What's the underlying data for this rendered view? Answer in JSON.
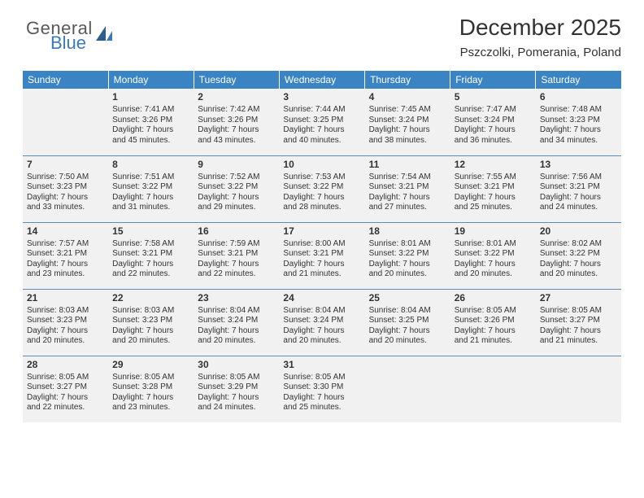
{
  "logo": {
    "word1": "General",
    "word2": "Blue"
  },
  "title": "December 2025",
  "subtitle": "Pszczolki, Pomerania, Poland",
  "colors": {
    "header_bg": "#3a84c4",
    "header_text": "#ffffff",
    "cell_bg": "#f1f1f1",
    "divider": "#5b8fb8",
    "text": "#333333",
    "logo_gray": "#595959",
    "logo_blue": "#3a7ab8"
  },
  "day_headers": [
    "Sunday",
    "Monday",
    "Tuesday",
    "Wednesday",
    "Thursday",
    "Friday",
    "Saturday"
  ],
  "weeks": [
    [
      null,
      {
        "n": "1",
        "sr": "Sunrise: 7:41 AM",
        "ss": "Sunset: 3:26 PM",
        "d1": "Daylight: 7 hours",
        "d2": "and 45 minutes."
      },
      {
        "n": "2",
        "sr": "Sunrise: 7:42 AM",
        "ss": "Sunset: 3:26 PM",
        "d1": "Daylight: 7 hours",
        "d2": "and 43 minutes."
      },
      {
        "n": "3",
        "sr": "Sunrise: 7:44 AM",
        "ss": "Sunset: 3:25 PM",
        "d1": "Daylight: 7 hours",
        "d2": "and 40 minutes."
      },
      {
        "n": "4",
        "sr": "Sunrise: 7:45 AM",
        "ss": "Sunset: 3:24 PM",
        "d1": "Daylight: 7 hours",
        "d2": "and 38 minutes."
      },
      {
        "n": "5",
        "sr": "Sunrise: 7:47 AM",
        "ss": "Sunset: 3:24 PM",
        "d1": "Daylight: 7 hours",
        "d2": "and 36 minutes."
      },
      {
        "n": "6",
        "sr": "Sunrise: 7:48 AM",
        "ss": "Sunset: 3:23 PM",
        "d1": "Daylight: 7 hours",
        "d2": "and 34 minutes."
      }
    ],
    [
      {
        "n": "7",
        "sr": "Sunrise: 7:50 AM",
        "ss": "Sunset: 3:23 PM",
        "d1": "Daylight: 7 hours",
        "d2": "and 33 minutes."
      },
      {
        "n": "8",
        "sr": "Sunrise: 7:51 AM",
        "ss": "Sunset: 3:22 PM",
        "d1": "Daylight: 7 hours",
        "d2": "and 31 minutes."
      },
      {
        "n": "9",
        "sr": "Sunrise: 7:52 AM",
        "ss": "Sunset: 3:22 PM",
        "d1": "Daylight: 7 hours",
        "d2": "and 29 minutes."
      },
      {
        "n": "10",
        "sr": "Sunrise: 7:53 AM",
        "ss": "Sunset: 3:22 PM",
        "d1": "Daylight: 7 hours",
        "d2": "and 28 minutes."
      },
      {
        "n": "11",
        "sr": "Sunrise: 7:54 AM",
        "ss": "Sunset: 3:21 PM",
        "d1": "Daylight: 7 hours",
        "d2": "and 27 minutes."
      },
      {
        "n": "12",
        "sr": "Sunrise: 7:55 AM",
        "ss": "Sunset: 3:21 PM",
        "d1": "Daylight: 7 hours",
        "d2": "and 25 minutes."
      },
      {
        "n": "13",
        "sr": "Sunrise: 7:56 AM",
        "ss": "Sunset: 3:21 PM",
        "d1": "Daylight: 7 hours",
        "d2": "and 24 minutes."
      }
    ],
    [
      {
        "n": "14",
        "sr": "Sunrise: 7:57 AM",
        "ss": "Sunset: 3:21 PM",
        "d1": "Daylight: 7 hours",
        "d2": "and 23 minutes."
      },
      {
        "n": "15",
        "sr": "Sunrise: 7:58 AM",
        "ss": "Sunset: 3:21 PM",
        "d1": "Daylight: 7 hours",
        "d2": "and 22 minutes."
      },
      {
        "n": "16",
        "sr": "Sunrise: 7:59 AM",
        "ss": "Sunset: 3:21 PM",
        "d1": "Daylight: 7 hours",
        "d2": "and 22 minutes."
      },
      {
        "n": "17",
        "sr": "Sunrise: 8:00 AM",
        "ss": "Sunset: 3:21 PM",
        "d1": "Daylight: 7 hours",
        "d2": "and 21 minutes."
      },
      {
        "n": "18",
        "sr": "Sunrise: 8:01 AM",
        "ss": "Sunset: 3:22 PM",
        "d1": "Daylight: 7 hours",
        "d2": "and 20 minutes."
      },
      {
        "n": "19",
        "sr": "Sunrise: 8:01 AM",
        "ss": "Sunset: 3:22 PM",
        "d1": "Daylight: 7 hours",
        "d2": "and 20 minutes."
      },
      {
        "n": "20",
        "sr": "Sunrise: 8:02 AM",
        "ss": "Sunset: 3:22 PM",
        "d1": "Daylight: 7 hours",
        "d2": "and 20 minutes."
      }
    ],
    [
      {
        "n": "21",
        "sr": "Sunrise: 8:03 AM",
        "ss": "Sunset: 3:23 PM",
        "d1": "Daylight: 7 hours",
        "d2": "and 20 minutes."
      },
      {
        "n": "22",
        "sr": "Sunrise: 8:03 AM",
        "ss": "Sunset: 3:23 PM",
        "d1": "Daylight: 7 hours",
        "d2": "and 20 minutes."
      },
      {
        "n": "23",
        "sr": "Sunrise: 8:04 AM",
        "ss": "Sunset: 3:24 PM",
        "d1": "Daylight: 7 hours",
        "d2": "and 20 minutes."
      },
      {
        "n": "24",
        "sr": "Sunrise: 8:04 AM",
        "ss": "Sunset: 3:24 PM",
        "d1": "Daylight: 7 hours",
        "d2": "and 20 minutes."
      },
      {
        "n": "25",
        "sr": "Sunrise: 8:04 AM",
        "ss": "Sunset: 3:25 PM",
        "d1": "Daylight: 7 hours",
        "d2": "and 20 minutes."
      },
      {
        "n": "26",
        "sr": "Sunrise: 8:05 AM",
        "ss": "Sunset: 3:26 PM",
        "d1": "Daylight: 7 hours",
        "d2": "and 21 minutes."
      },
      {
        "n": "27",
        "sr": "Sunrise: 8:05 AM",
        "ss": "Sunset: 3:27 PM",
        "d1": "Daylight: 7 hours",
        "d2": "and 21 minutes."
      }
    ],
    [
      {
        "n": "28",
        "sr": "Sunrise: 8:05 AM",
        "ss": "Sunset: 3:27 PM",
        "d1": "Daylight: 7 hours",
        "d2": "and 22 minutes."
      },
      {
        "n": "29",
        "sr": "Sunrise: 8:05 AM",
        "ss": "Sunset: 3:28 PM",
        "d1": "Daylight: 7 hours",
        "d2": "and 23 minutes."
      },
      {
        "n": "30",
        "sr": "Sunrise: 8:05 AM",
        "ss": "Sunset: 3:29 PM",
        "d1": "Daylight: 7 hours",
        "d2": "and 24 minutes."
      },
      {
        "n": "31",
        "sr": "Sunrise: 8:05 AM",
        "ss": "Sunset: 3:30 PM",
        "d1": "Daylight: 7 hours",
        "d2": "and 25 minutes."
      },
      null,
      null,
      null
    ]
  ]
}
